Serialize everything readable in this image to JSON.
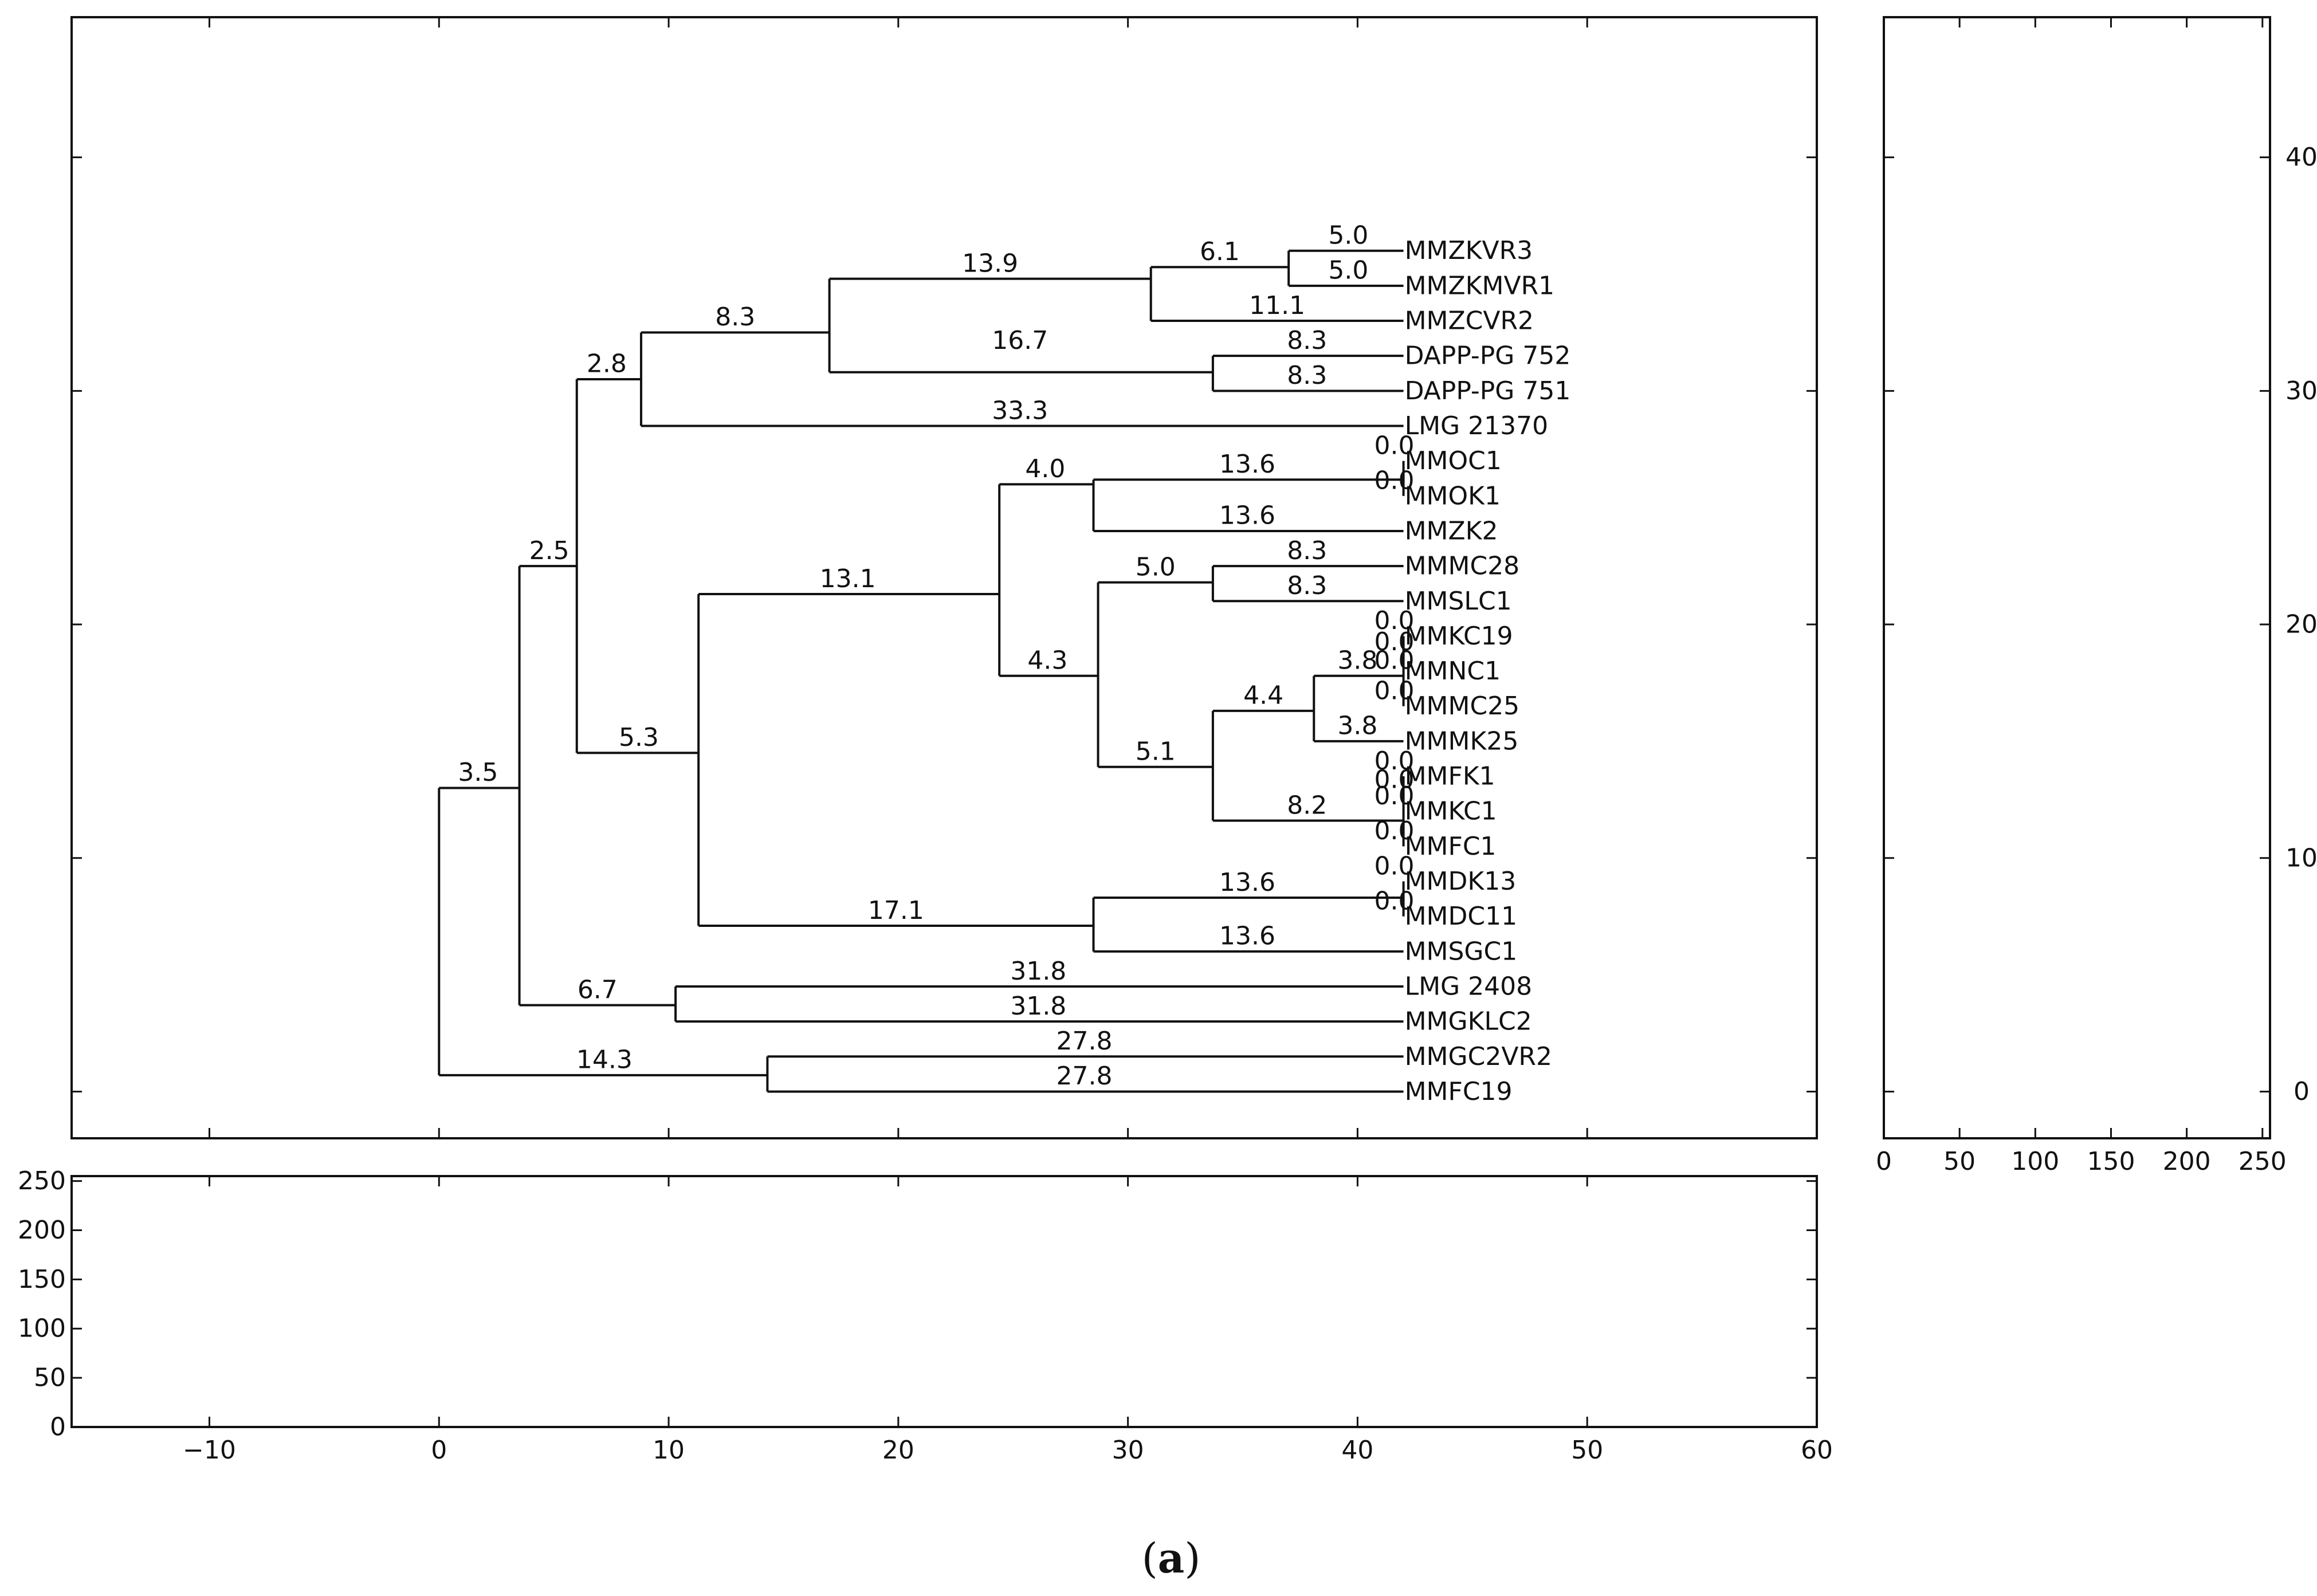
{
  "caption": {
    "open": "(",
    "letter": "a",
    "close": ")"
  },
  "chart_data": {
    "type": "dendrogram",
    "title": "",
    "main_panel": {
      "xlim": [
        -16,
        60
      ],
      "ylim": [
        -2,
        46
      ],
      "x_ticks": [
        -10,
        0,
        10,
        20,
        30,
        40,
        50,
        60
      ],
      "y_ticks": [
        0,
        10,
        20,
        30,
        40
      ],
      "leaves": [
        {
          "name": "MMZKVR3",
          "y": 36
        },
        {
          "name": "MMZKMVR1",
          "y": 34.5
        },
        {
          "name": "MMZCVR2",
          "y": 33
        },
        {
          "name": "DAPP-PG 752",
          "y": 31.5
        },
        {
          "name": "DAPP-PG 751",
          "y": 30
        },
        {
          "name": "LMG 21370",
          "y": 28.5
        },
        {
          "name": "MMOC1",
          "y": 27
        },
        {
          "name": "MMOK1",
          "y": 25.5
        },
        {
          "name": "MMZK2",
          "y": 24
        },
        {
          "name": "MMMC28",
          "y": 22.5
        },
        {
          "name": "MMSLC1",
          "y": 21
        },
        {
          "name": "MMKC19",
          "y": 19.5
        },
        {
          "name": "MMNC1",
          "y": 18
        },
        {
          "name": "MMMC25",
          "y": 16.5
        },
        {
          "name": "MMMK25",
          "y": 15
        },
        {
          "name": "MMFK1",
          "y": 13.5
        },
        {
          "name": "MMKC1",
          "y": 12
        },
        {
          "name": "MMFC1",
          "y": 10.5
        },
        {
          "name": "MMDK13",
          "y": 9
        },
        {
          "name": "MMDC11",
          "y": 7.5
        },
        {
          "name": "MMSGC1",
          "y": 6
        },
        {
          "name": "LMG 2408",
          "y": 4.5
        },
        {
          "name": "MMGKLC2",
          "y": 3
        },
        {
          "name": "MMGC2VR2",
          "y": 1.5
        },
        {
          "name": "MMFC19",
          "y": 0
        }
      ],
      "leaf_x": 42,
      "nodes": [
        {
          "x": 0,
          "y_top": 13,
          "y_bottom": 0.7
        },
        {
          "x": 3.5,
          "y_top": 22.5,
          "y_bottom": 3.7
        },
        {
          "x": 6,
          "y_top": 30.5,
          "y_bottom": 14.5
        },
        {
          "x": 8.8,
          "y_top": 32.5,
          "y_bottom": 28.5
        },
        {
          "x": 17,
          "y_top": 34.8,
          "y_bottom": 30.8
        },
        {
          "x": 31,
          "y_top": 35.3,
          "y_bottom": 33
        },
        {
          "x": 37,
          "y_top": 36,
          "y_bottom": 34.5
        },
        {
          "x": 33.7,
          "y_top": 31.5,
          "y_bottom": 30
        },
        {
          "x": 11.3,
          "y_top": 21.3,
          "y_bottom": 7.1
        },
        {
          "x": 24.4,
          "y_top": 26,
          "y_bottom": 17.8
        },
        {
          "x": 28.5,
          "y_top": 26.2,
          "y_bottom": 24
        },
        {
          "x": 42,
          "y_top": 27,
          "y_bottom": 25.5
        },
        {
          "x": 28.7,
          "y_top": 21.8,
          "y_bottom": 13.9
        },
        {
          "x": 33.7,
          "y_top": 22.5,
          "y_bottom": 21
        },
        {
          "x": 33.7,
          "y_top": 16.3,
          "y_bottom": 11.6
        },
        {
          "x": 38.1,
          "y_top": 17.8,
          "y_bottom": 15
        },
        {
          "x": 42,
          "y_top": 19.5,
          "y_bottom": 16.5
        },
        {
          "x": 42,
          "y_top": 13.5,
          "y_bottom": 10.5
        },
        {
          "x": 28.5,
          "y_top": 8.3,
          "y_bottom": 6
        },
        {
          "x": 42,
          "y_top": 9,
          "y_bottom": 7.5
        },
        {
          "x": 10.3,
          "y_top": 4.5,
          "y_bottom": 3
        },
        {
          "x": 14.3,
          "y_top": 1.5,
          "y_bottom": 0
        }
      ],
      "branches": [
        {
          "x1": 3.5,
          "x2": 6,
          "y": 22.5
        },
        {
          "x1": 6,
          "x2": 8.8,
          "y": 30.5
        },
        {
          "x1": 8.8,
          "x2": 17,
          "y": 32.5
        },
        {
          "x1": 17,
          "x2": 31,
          "y": 34.8
        },
        {
          "x1": 31,
          "x2": 37,
          "y": 35.3
        },
        {
          "x1": 37,
          "x2": 42,
          "y": 36
        },
        {
          "x1": 37,
          "x2": 42,
          "y": 34.5
        },
        {
          "x1": 31,
          "x2": 42,
          "y": 33
        },
        {
          "x1": 17,
          "x2": 33.7,
          "y": 30.8
        },
        {
          "x1": 33.7,
          "x2": 42,
          "y": 31.5
        },
        {
          "x1": 33.7,
          "x2": 42,
          "y": 30
        },
        {
          "x1": 8.8,
          "x2": 42,
          "y": 28.5
        },
        {
          "x1": 6,
          "x2": 11.3,
          "y": 14.5
        },
        {
          "x1": 11.3,
          "x2": 24.4,
          "y": 21.3
        },
        {
          "x1": 24.4,
          "x2": 28.5,
          "y": 26
        },
        {
          "x1": 28.5,
          "x2": 42,
          "y": 26.2
        },
        {
          "x1": 28.5,
          "x2": 42,
          "y": 24
        },
        {
          "x1": 24.4,
          "x2": 28.7,
          "y": 17.8
        },
        {
          "x1": 28.7,
          "x2": 33.7,
          "y": 21.8
        },
        {
          "x1": 33.7,
          "x2": 42,
          "y": 22.5
        },
        {
          "x1": 33.7,
          "x2": 42,
          "y": 21
        },
        {
          "x1": 28.7,
          "x2": 33.7,
          "y": 13.9
        },
        {
          "x1": 33.7,
          "x2": 38.1,
          "y": 16.3
        },
        {
          "x1": 38.1,
          "x2": 42,
          "y": 17.8
        },
        {
          "x1": 38.1,
          "x2": 42,
          "y": 15
        },
        {
          "x1": 33.7,
          "x2": 42,
          "y": 11.6
        },
        {
          "x1": 11.3,
          "x2": 28.5,
          "y": 7.1
        },
        {
          "x1": 28.5,
          "x2": 42,
          "y": 8.3
        },
        {
          "x1": 28.5,
          "x2": 42,
          "y": 6
        },
        {
          "x1": 3.5,
          "x2": 10.3,
          "y": 3.7
        },
        {
          "x1": 10.3,
          "x2": 42,
          "y": 4.5
        },
        {
          "x1": 10.3,
          "x2": 42,
          "y": 3
        },
        {
          "x1": 0,
          "x2": 3.5,
          "y": 13
        },
        {
          "x1": 0,
          "x2": 14.3,
          "y": 0.7
        },
        {
          "x1": 14.3,
          "x2": 42,
          "y": 1.5
        },
        {
          "x1": 14.3,
          "x2": 42,
          "y": 0
        }
      ],
      "branch_labels": [
        {
          "text": "5.0",
          "x": 39.6,
          "y": 36.3
        },
        {
          "text": "5.0",
          "x": 39.6,
          "y": 34.8
        },
        {
          "text": "6.1",
          "x": 34,
          "y": 35.6
        },
        {
          "text": "11.1",
          "x": 36.5,
          "y": 33.3
        },
        {
          "text": "13.9",
          "x": 24,
          "y": 35.1
        },
        {
          "text": "8.3",
          "x": 37.8,
          "y": 31.8
        },
        {
          "text": "8.3",
          "x": 37.8,
          "y": 30.3
        },
        {
          "text": "16.7",
          "x": 25.3,
          "y": 31.8
        },
        {
          "text": "8.3",
          "x": 12.9,
          "y": 32.8
        },
        {
          "text": "33.3",
          "x": 25.3,
          "y": 28.8
        },
        {
          "text": "2.8",
          "x": 7.3,
          "y": 30.8
        },
        {
          "text": "0.0",
          "x": 41.6,
          "y": 27.3
        },
        {
          "text": "0.0",
          "x": 41.6,
          "y": 25.8
        },
        {
          "text": "13.6",
          "x": 35.2,
          "y": 26.5
        },
        {
          "text": "13.6",
          "x": 35.2,
          "y": 24.3
        },
        {
          "text": "4.0",
          "x": 26.4,
          "y": 26.3
        },
        {
          "text": "8.3",
          "x": 37.8,
          "y": 22.8
        },
        {
          "text": "8.3",
          "x": 37.8,
          "y": 21.3
        },
        {
          "text": "5.0",
          "x": 31.2,
          "y": 22.1
        },
        {
          "text": "13.1",
          "x": 17.8,
          "y": 21.6
        },
        {
          "text": "0.0",
          "x": 41.6,
          "y": 19.8
        },
        {
          "text": "0.0",
          "x": 41.6,
          "y": 18.9
        },
        {
          "text": "0.0",
          "x": 41.6,
          "y": 18.1
        },
        {
          "text": "3.8",
          "x": 40,
          "y": 18.1
        },
        {
          "text": "0.0",
          "x": 41.6,
          "y": 16.8
        },
        {
          "text": "3.8",
          "x": 40,
          "y": 15.3
        },
        {
          "text": "4.4",
          "x": 35.9,
          "y": 16.6
        },
        {
          "text": "4.3",
          "x": 26.5,
          "y": 18.1
        },
        {
          "text": "5.1",
          "x": 31.2,
          "y": 14.2
        },
        {
          "text": "0.0",
          "x": 41.6,
          "y": 13.8
        },
        {
          "text": "0.0",
          "x": 41.6,
          "y": 13
        },
        {
          "text": "0.0",
          "x": 41.6,
          "y": 12.3
        },
        {
          "text": "0.0",
          "x": 41.6,
          "y": 10.8
        },
        {
          "text": "8.2",
          "x": 37.8,
          "y": 11.9
        },
        {
          "text": "5.3",
          "x": 8.7,
          "y": 14.8
        },
        {
          "text": "0.0",
          "x": 41.6,
          "y": 9.3
        },
        {
          "text": "0.0",
          "x": 41.6,
          "y": 7.8
        },
        {
          "text": "13.6",
          "x": 35.2,
          "y": 8.6
        },
        {
          "text": "13.6",
          "x": 35.2,
          "y": 6.3
        },
        {
          "text": "17.1",
          "x": 19.9,
          "y": 7.4
        },
        {
          "text": "2.5",
          "x": 4.8,
          "y": 22.8
        },
        {
          "text": "31.8",
          "x": 26.1,
          "y": 4.8
        },
        {
          "text": "31.8",
          "x": 26.1,
          "y": 3.3
        },
        {
          "text": "6.7",
          "x": 6.9,
          "y": 4
        },
        {
          "text": "3.5",
          "x": 1.7,
          "y": 13.3
        },
        {
          "text": "27.8",
          "x": 28.1,
          "y": 1.8
        },
        {
          "text": "27.8",
          "x": 28.1,
          "y": 0.3
        },
        {
          "text": "14.3",
          "x": 7.2,
          "y": 1
        }
      ]
    },
    "bottom_panel": {
      "xlim": [
        -16,
        60
      ],
      "ylim": [
        0,
        255
      ],
      "x_ticks": [
        -10,
        0,
        10,
        20,
        30,
        40,
        50,
        60
      ],
      "y_ticks": [
        0,
        50,
        100,
        150,
        200,
        250
      ],
      "data": []
    },
    "right_panel": {
      "xlim": [
        0,
        255
      ],
      "ylim": [
        -2,
        46
      ],
      "x_ticks": [
        0,
        50,
        100,
        150,
        200,
        250
      ],
      "y_ticks": [
        0,
        10,
        20,
        30,
        40
      ],
      "data": []
    }
  }
}
